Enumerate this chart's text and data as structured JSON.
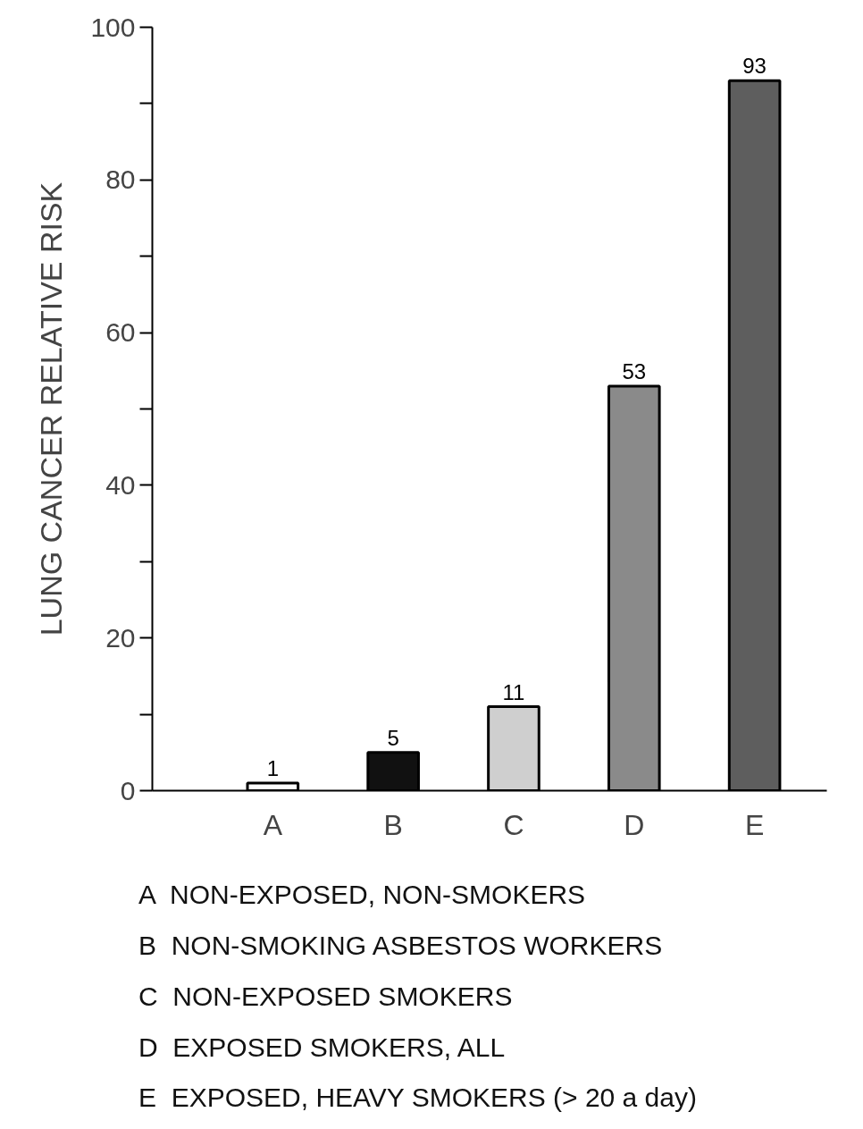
{
  "chart_data": {
    "type": "bar",
    "ylabel": "LUNG CANCER RELATIVE RISK",
    "categories": [
      "A",
      "B",
      "C",
      "D",
      "E"
    ],
    "values": [
      1,
      5,
      11,
      53,
      93
    ],
    "colors": [
      "#ffffff",
      "#111111",
      "#cfcfcf",
      "#8a8a8a",
      "#5e5e5e"
    ],
    "ylim": [
      0,
      100
    ],
    "yticks": [
      0,
      {
        "value": 10,
        "label": null
      },
      20,
      {
        "value": 30,
        "label": null
      },
      40,
      {
        "value": 50,
        "label": null
      },
      60,
      {
        "value": 70,
        "label": null
      },
      80,
      {
        "value": 90,
        "label": null
      },
      100
    ],
    "data_labels": true,
    "annotations": [
      "A  NON-EXPOSED, NON-SMOKERS",
      "B  NON-SMOKING ASBESTOS WORKERS",
      "C  NON-EXPOSED SMOKERS",
      "D  EXPOSED SMOKERS, ALL",
      "E  EXPOSED, HEAVY SMOKERS (> 20 a day)"
    ]
  }
}
